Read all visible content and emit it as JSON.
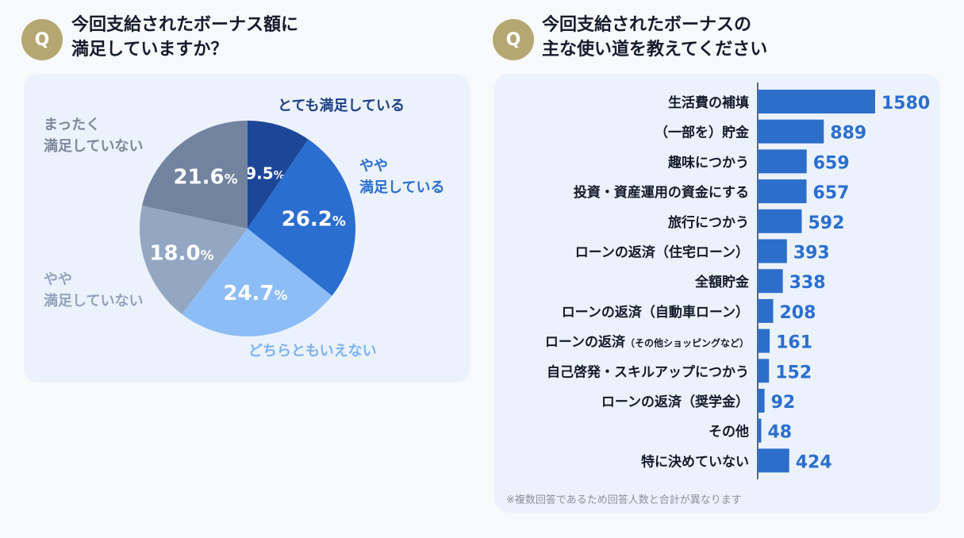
{
  "left": {
    "badge": "Q",
    "title_line1": "今回支給されたボーナス額に",
    "title_line2": "満足していますか？"
  },
  "right": {
    "badge": "Q",
    "title_line1": "今回支給されたボーナスの",
    "title_line2": "主な使い道を教えてください",
    "note": "※複数回答であるため回答人数と合計が異なります"
  },
  "chart_data": [
    {
      "type": "pie",
      "unit": "%",
      "slices": [
        {
          "label": "とても満足している",
          "value": 9.5,
          "color": "#1d4696"
        },
        {
          "label": "やや\n満足している",
          "value": 26.2,
          "color": "#2a6ed0"
        },
        {
          "label": "どちらともいえない",
          "value": 24.7,
          "color": "#8cbdf6"
        },
        {
          "label": "やや\n満足していない",
          "value": 18.0,
          "color": "#93a7c3"
        },
        {
          "label": "まったく\n満足していない",
          "value": 21.6,
          "color": "#7283a0"
        }
      ]
    },
    {
      "type": "bar",
      "orientation": "horizontal",
      "color": "#2d6ecb",
      "categories": [
        "生活費の補填",
        "（一部を）貯金",
        "趣味につかう",
        "投資・資産運用の資金にする",
        "旅行につかう",
        "ローンの返済（住宅ローン）",
        "全額貯金",
        "ローンの返済（自動車ローン）",
        "ローンの返済（その他ショッピングなど）",
        "自己啓発・スキルアップにつかう",
        "ローンの返済（奨学金）",
        "その他",
        "特に決めていない"
      ],
      "values": [
        1580,
        889,
        659,
        657,
        592,
        393,
        338,
        208,
        161,
        152,
        92,
        48,
        424
      ],
      "xlim": [
        0,
        1580
      ]
    }
  ]
}
